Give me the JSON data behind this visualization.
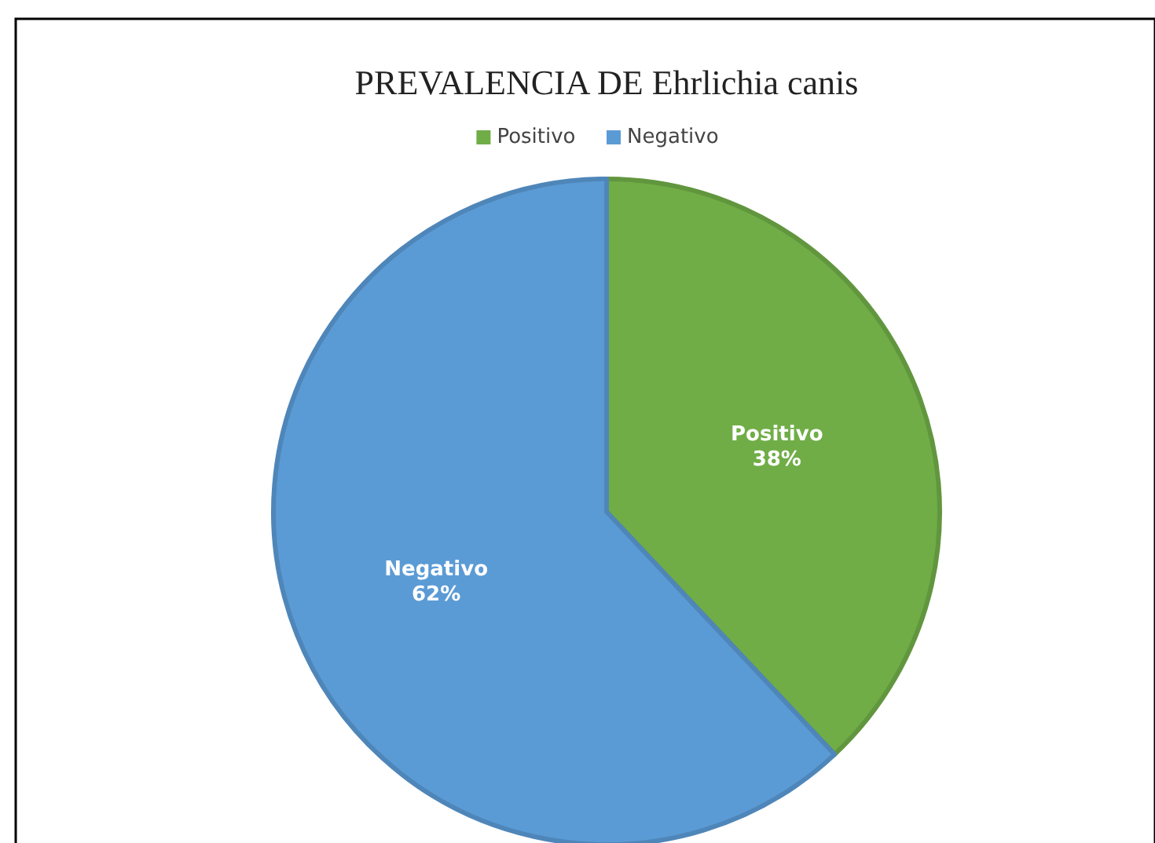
{
  "chart_data": {
    "type": "pie",
    "title": "PREVALENCIA DE Ehrlichia canis",
    "categories": [
      "Positivo",
      "Negativo"
    ],
    "values": [
      38,
      62
    ],
    "colors": [
      "#70ad47",
      "#5b9bd5"
    ],
    "value_labels": [
      "38%",
      "62%"
    ],
    "legend": "top"
  }
}
